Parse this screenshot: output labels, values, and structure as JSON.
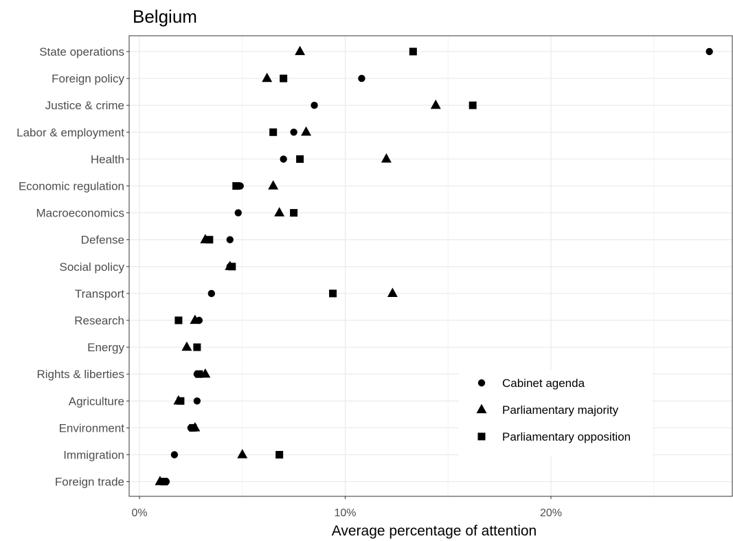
{
  "chart_data": {
    "type": "scatter",
    "title": "Belgium",
    "xlabel": "Average percentage of attention",
    "ylabel": "",
    "xlim": [
      -0.4,
      28.8
    ],
    "xticks": [
      0,
      10,
      20
    ],
    "xtick_labels": [
      "0%",
      "10%",
      "20%"
    ],
    "x_grid_major": [
      0,
      10,
      20
    ],
    "x_grid_minor": [
      5,
      15,
      25
    ],
    "grid": true,
    "legend_position": "bottom-right",
    "categories": [
      "State operations",
      "Foreign policy",
      "Justice & crime",
      "Labor & employment",
      "Health",
      "Economic regulation",
      "Macroeconomics",
      "Defense",
      "Social policy",
      "Transport",
      "Research",
      "Energy",
      "Rights & liberties",
      "Agriculture",
      "Environment",
      "Immigration",
      "Foreign trade"
    ],
    "series": [
      {
        "name": "Cabinet agenda",
        "marker": "circle",
        "values": [
          27.7,
          10.8,
          8.5,
          7.5,
          7.0,
          4.9,
          4.8,
          4.4,
          4.4,
          3.5,
          2.9,
          2.8,
          2.8,
          2.8,
          2.5,
          1.7,
          1.3
        ]
      },
      {
        "name": "Parliamentary majority",
        "marker": "triangle",
        "values": [
          7.8,
          6.2,
          14.4,
          8.1,
          12.0,
          6.5,
          6.8,
          3.2,
          4.4,
          12.3,
          2.7,
          2.3,
          3.2,
          1.9,
          2.7,
          5.0,
          1.0
        ]
      },
      {
        "name": "Parliamentary opposition",
        "marker": "square",
        "values": [
          13.3,
          7.0,
          16.2,
          6.5,
          7.8,
          4.7,
          7.5,
          3.4,
          4.5,
          9.4,
          1.9,
          2.8,
          2.9,
          2.0,
          2.6,
          6.8,
          1.2
        ]
      }
    ]
  }
}
